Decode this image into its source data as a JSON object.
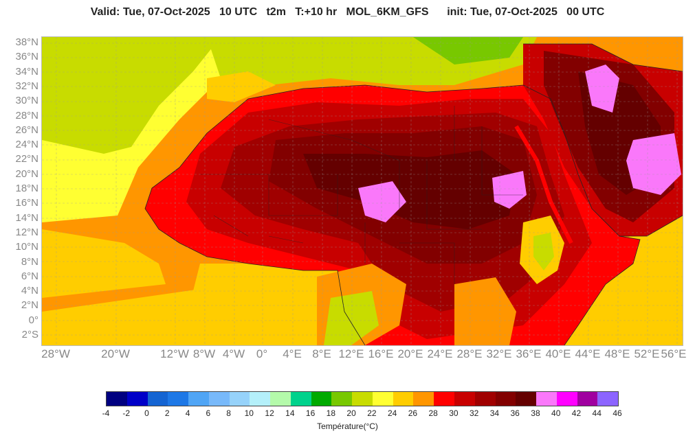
{
  "header": {
    "title": "Valid: Tue, 07-Oct-2025   10 UTC   t2m   T:+10 hr   MOL_6KM_GFS      init: Tue, 07-Oct-2025   00 UTC"
  },
  "map": {
    "lat_labels": [
      "38°N",
      "36°N",
      "34°N",
      "32°N",
      "30°N",
      "28°N",
      "26°N",
      "24°N",
      "22°N",
      "20°N",
      "18°N",
      "16°N",
      "14°N",
      "12°N",
      "10°N",
      "8°N",
      "6°N",
      "4°N",
      "2°N",
      "0°",
      "2°S"
    ],
    "lon_labels": [
      "28°W",
      "20°W",
      "12°W",
      "8°W",
      "4°W",
      "0°",
      "4°E",
      "8°E",
      "12°E",
      "16°E",
      "20°E",
      "24°E",
      "28°E",
      "32°E",
      "36°E",
      "40°E",
      "44°E",
      "48°E",
      "52°E",
      "56°E"
    ]
  },
  "colorbar": {
    "ticks": [
      "-4",
      "-2",
      "0",
      "2",
      "4",
      "6",
      "8",
      "10",
      "12",
      "14",
      "16",
      "18",
      "20",
      "22",
      "24",
      "26",
      "28",
      "30",
      "32",
      "34",
      "36",
      "38",
      "40",
      "42",
      "44",
      "46"
    ],
    "colors": [
      "#000080",
      "#0000c8",
      "#1464d2",
      "#1e78e6",
      "#50a5f5",
      "#78b9fa",
      "#96d2fa",
      "#b4f0fa",
      "#b4faaa",
      "#00d28c",
      "#00aa00",
      "#78c800",
      "#c8dc00",
      "#ffff32",
      "#ffcd00",
      "#ff9600",
      "#ff0000",
      "#c80000",
      "#a00000",
      "#820000",
      "#640000",
      "#fa78fa",
      "#ff00ff",
      "#a000a0",
      "#8c64ff"
    ],
    "label": "Température(°C)"
  }
}
